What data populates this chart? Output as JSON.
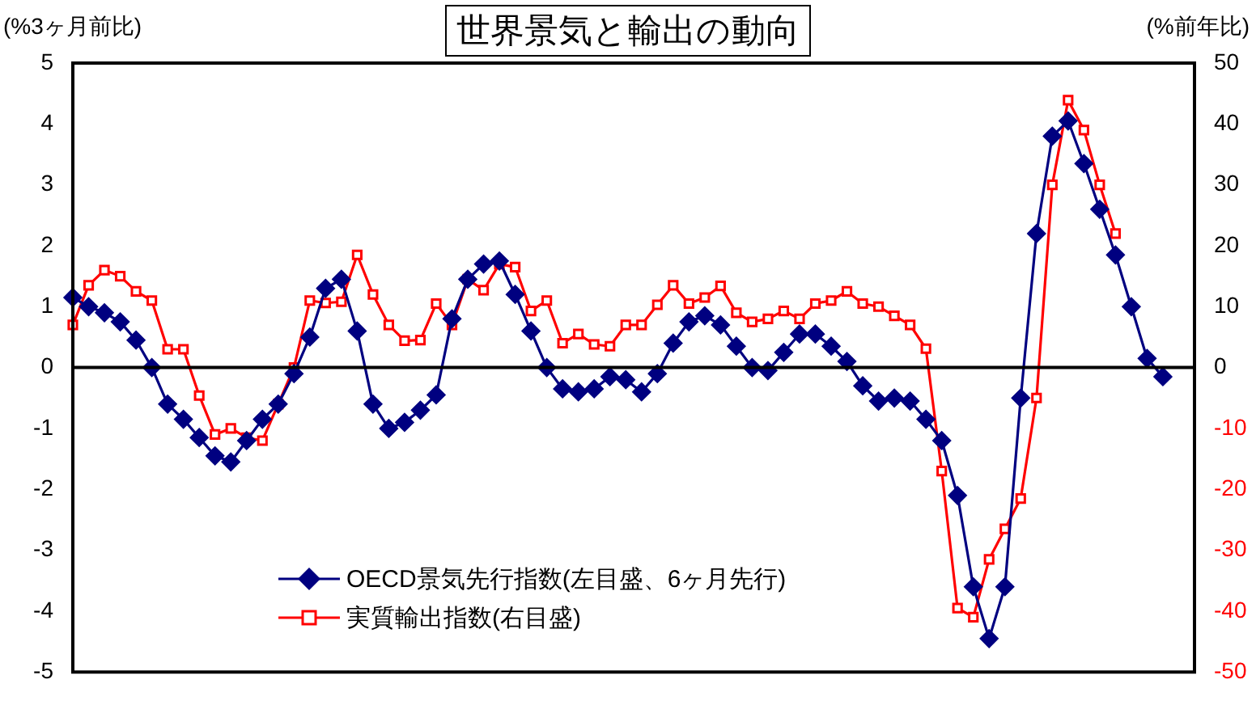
{
  "chart_data": {
    "type": "line",
    "title": "世界景気と輸出の動向",
    "ylabel": "(%3ヶ月前比)",
    "y2label": "(%前年比)",
    "categories": [
      null,
      null,
      null,
      null,
      null,
      null,
      null,
      null,
      null,
      null,
      null,
      null,
      null,
      null,
      null,
      null,
      null,
      null,
      null,
      null,
      null,
      null,
      null,
      null,
      null,
      null,
      null,
      null,
      null,
      null,
      null,
      null,
      null,
      null,
      null,
      null,
      null,
      null,
      null,
      null,
      null,
      null,
      null,
      null,
      null,
      null,
      null,
      null,
      null,
      null,
      null,
      null,
      null,
      null,
      null,
      null,
      null,
      null,
      null,
      null,
      null,
      null,
      null,
      null,
      null,
      null,
      null,
      null,
      null,
      null,
      null,
      null
    ],
    "series": [
      {
        "name": "OECD景気先行指数(左目盛、6ヶ月先行)",
        "color": "#000080",
        "marker": "diamond",
        "values": [
          1.15,
          1.0,
          0.9,
          0.75,
          0.45,
          0.0,
          -0.6,
          -0.85,
          -1.15,
          -1.45,
          -1.55,
          -1.2,
          -0.85,
          -0.6,
          -0.1,
          0.5,
          1.3,
          1.45,
          0.6,
          -0.6,
          -1.0,
          -0.9,
          -0.7,
          -0.45,
          0.8,
          1.45,
          1.7,
          1.75,
          1.2,
          0.6,
          0.0,
          -0.35,
          -0.4,
          -0.35,
          -0.15,
          -0.2,
          -0.4,
          -0.1,
          0.4,
          0.75,
          0.85,
          0.7,
          0.35,
          0.0,
          -0.05,
          0.25,
          0.55,
          0.55,
          0.35,
          0.1,
          -0.3,
          -0.55,
          -0.5,
          -0.55,
          -0.85,
          -1.2,
          -2.1,
          -3.6,
          -4.45,
          -3.6,
          -0.5,
          2.2,
          3.8,
          4.05,
          3.35,
          2.6,
          1.85,
          1.0,
          0.15,
          -0.15,
          null,
          null
        ]
      },
      {
        "name": "実質輸出指数(右目盛)",
        "color": "#ff0000",
        "marker": "square",
        "axis": "y2",
        "values": [
          7,
          13.5,
          16,
          15,
          12.5,
          11,
          3,
          3,
          -4.6,
          -11,
          -10,
          -11.5,
          -12,
          -6,
          0,
          11,
          10.6,
          10.8,
          18.5,
          12,
          7,
          4.4,
          4.5,
          10.5,
          7,
          14.5,
          12.7,
          17,
          16.5,
          9.3,
          11,
          4,
          5.5,
          3.8,
          3.5,
          7,
          7,
          10.3,
          13.5,
          10.5,
          11.5,
          13.4,
          9,
          7.5,
          8,
          9.3,
          8,
          10.5,
          11,
          12.5,
          10.5,
          10,
          8.5,
          7,
          3.1,
          -17,
          -39.5,
          -41,
          -31.5,
          -26.5,
          -21.5,
          -5,
          30,
          43.9,
          39,
          30,
          22,
          null,
          null,
          null,
          null,
          null
        ]
      }
    ],
    "ylim": [
      -5,
      5
    ],
    "yticks": [
      -5,
      -4,
      -3,
      -2,
      -1,
      0,
      1,
      2,
      3,
      4,
      5
    ],
    "y2lim": [
      -50,
      50
    ],
    "y2ticks": [
      -50,
      -40,
      -30,
      -20,
      -10,
      0,
      10,
      20,
      30,
      40,
      50
    ],
    "ref_lines": [
      {
        "axis": "y",
        "value": 0,
        "color": "#000000"
      }
    ],
    "grid": false,
    "legend": "bottom left",
    "tick_labels": "y",
    "line_style": "solid"
  }
}
